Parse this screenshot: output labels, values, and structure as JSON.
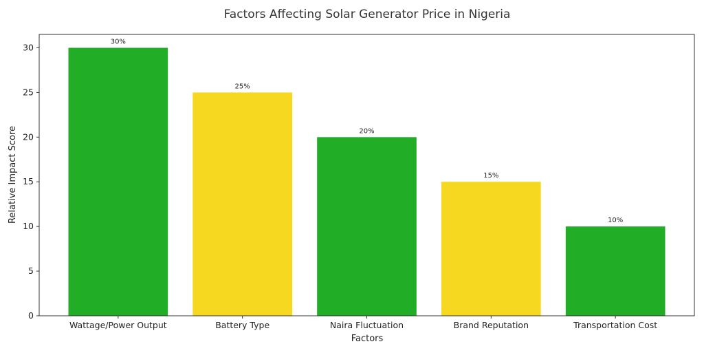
{
  "chart_data": {
    "type": "bar",
    "title": "Factors Affecting Solar Generator Price in Nigeria",
    "xlabel": "Factors",
    "ylabel": "Relative Impact Score",
    "categories": [
      "Wattage/Power Output",
      "Battery Type",
      "Naira Fluctuation",
      "Brand Reputation",
      "Transportation Cost"
    ],
    "values": [
      30,
      25,
      20,
      15,
      10
    ],
    "data_labels": [
      "30%",
      "25%",
      "20%",
      "15%",
      "10%"
    ],
    "colors": [
      "#22ad27",
      "#f7d820",
      "#22ad27",
      "#f7d820",
      "#22ad27"
    ],
    "ylim": [
      0,
      31.5
    ],
    "yticks": [
      0,
      5,
      10,
      15,
      20,
      25,
      30
    ],
    "grid": false,
    "legend": "none"
  }
}
